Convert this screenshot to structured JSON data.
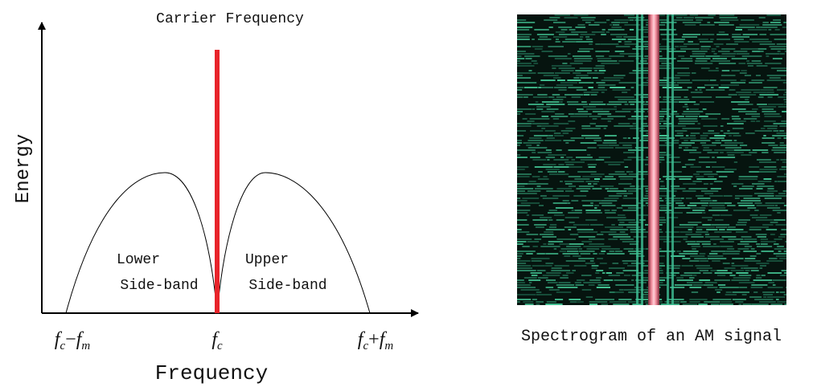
{
  "diagram": {
    "carrier_label": "Carrier Frequency",
    "y_axis_label": "Energy",
    "x_axis_label": "Frequency",
    "lower_sideband": [
      "Lower",
      "Side-band"
    ],
    "upper_sideband": [
      "Upper",
      "Side-band"
    ],
    "tick_labels": [
      [
        "f",
        "c",
        "−",
        "f",
        "m"
      ],
      [
        "f",
        "c"
      ],
      [
        "f",
        "c",
        "+",
        "f",
        "m"
      ]
    ],
    "spectrogram_caption": "Spectrogram of an AM signal"
  }
}
